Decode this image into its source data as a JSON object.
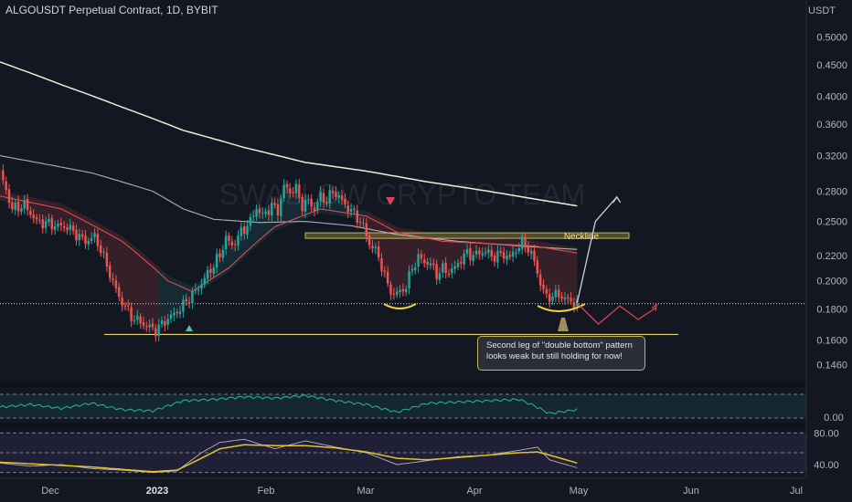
{
  "header": {
    "title": "ALGOUSDT Perpetual Contract, 1D, BYBIT",
    "currency": "USDT"
  },
  "watermark": "SWALLOW CRYPTO TEAM",
  "colors": {
    "background": "#131722",
    "up": "#26a69a",
    "down": "#ef5350",
    "accent": "#c5b55a"
  },
  "chart_data": {
    "type": "candlestick",
    "yscale": "log",
    "ylim": [
      0.137,
      0.54
    ],
    "y_ticks": [
      "0.5000",
      "0.4500",
      "0.4000",
      "0.3600",
      "0.3200",
      "0.2800",
      "0.2500",
      "0.2200",
      "0.2000",
      "0.1800",
      "0.1600",
      "0.1460"
    ],
    "x_ticks": [
      "Dec",
      "2023",
      "Feb",
      "Mar",
      "Apr",
      "May",
      "Jun",
      "Jul"
    ],
    "price_path": [
      [
        0,
        0.3
      ],
      [
        4,
        0.262
      ],
      [
        8,
        0.266
      ],
      [
        12,
        0.25
      ],
      [
        16,
        0.248
      ],
      [
        18,
        0.246
      ],
      [
        22,
        0.245
      ],
      [
        26,
        0.236
      ],
      [
        28,
        0.232
      ],
      [
        31,
        0.236
      ],
      [
        33,
        0.225
      ],
      [
        36,
        0.205
      ],
      [
        39,
        0.188
      ],
      [
        43,
        0.175
      ],
      [
        47,
        0.17
      ],
      [
        51,
        0.166
      ],
      [
        54,
        0.172
      ],
      [
        58,
        0.178
      ],
      [
        61,
        0.185
      ],
      [
        65,
        0.195
      ],
      [
        68,
        0.205
      ],
      [
        72,
        0.22
      ],
      [
        74,
        0.235
      ],
      [
        76,
        0.228
      ],
      [
        79,
        0.24
      ],
      [
        82,
        0.25
      ],
      [
        84,
        0.263
      ],
      [
        86,
        0.255
      ],
      [
        89,
        0.265
      ],
      [
        91,
        0.26
      ],
      [
        93,
        0.285
      ],
      [
        95,
        0.28
      ],
      [
        97,
        0.282
      ],
      [
        99,
        0.265
      ],
      [
        101,
        0.27
      ],
      [
        103,
        0.262
      ],
      [
        105,
        0.275
      ],
      [
        107,
        0.27
      ],
      [
        109,
        0.28
      ],
      [
        111,
        0.274
      ],
      [
        113,
        0.266
      ],
      [
        115,
        0.26
      ],
      [
        117,
        0.254
      ],
      [
        119,
        0.245
      ],
      [
        121,
        0.23
      ],
      [
        123,
        0.224
      ],
      [
        125,
        0.212
      ],
      [
        127,
        0.196
      ],
      [
        129,
        0.19
      ],
      [
        131,
        0.192
      ],
      [
        133,
        0.196
      ],
      [
        135,
        0.21
      ],
      [
        137,
        0.218
      ],
      [
        139,
        0.215
      ],
      [
        141,
        0.213
      ],
      [
        143,
        0.205
      ],
      [
        145,
        0.209
      ],
      [
        147,
        0.207
      ],
      [
        149,
        0.21
      ],
      [
        151,
        0.217
      ],
      [
        153,
        0.222
      ],
      [
        155,
        0.22
      ],
      [
        157,
        0.222
      ],
      [
        159,
        0.224
      ],
      [
        161,
        0.219
      ],
      [
        163,
        0.22
      ],
      [
        165,
        0.221
      ],
      [
        167,
        0.218
      ],
      [
        169,
        0.225
      ],
      [
        171,
        0.231
      ],
      [
        173,
        0.226
      ],
      [
        175,
        0.215
      ],
      [
        177,
        0.198
      ],
      [
        179,
        0.188
      ],
      [
        181,
        0.189
      ],
      [
        183,
        0.19
      ],
      [
        185,
        0.187
      ],
      [
        187,
        0.185
      ],
      [
        189,
        0.184
      ]
    ],
    "ema_short": [
      [
        0,
        0.275
      ],
      [
        20,
        0.262
      ],
      [
        40,
        0.232
      ],
      [
        55,
        0.2
      ],
      [
        63,
        0.192
      ],
      [
        75,
        0.21
      ],
      [
        90,
        0.245
      ],
      [
        105,
        0.262
      ],
      [
        120,
        0.255
      ],
      [
        130,
        0.24
      ],
      [
        145,
        0.232
      ],
      [
        160,
        0.23
      ],
      [
        175,
        0.228
      ],
      [
        189,
        0.222
      ]
    ],
    "ema_long": [
      [
        0,
        0.32
      ],
      [
        30,
        0.3
      ],
      [
        50,
        0.28
      ],
      [
        60,
        0.262
      ],
      [
        70,
        0.252
      ],
      [
        85,
        0.249
      ],
      [
        100,
        0.25
      ],
      [
        115,
        0.246
      ],
      [
        130,
        0.238
      ],
      [
        150,
        0.232
      ],
      [
        170,
        0.228
      ],
      [
        189,
        0.225
      ]
    ],
    "ma_200": [
      [
        0,
        0.455
      ],
      [
        20,
        0.418
      ],
      [
        40,
        0.384
      ],
      [
        60,
        0.352
      ],
      [
        80,
        0.33
      ],
      [
        100,
        0.312
      ],
      [
        120,
        0.302
      ],
      [
        140,
        0.29
      ],
      [
        160,
        0.28
      ],
      [
        175,
        0.272
      ],
      [
        189,
        0.265
      ]
    ],
    "levels": {
      "current_price": 0.1835,
      "support": 0.1635,
      "neckline_zone": [
        0.2346,
        0.2395
      ]
    },
    "annotations": {
      "neckline_label": "Neckline",
      "callout": "Second leg of \"double bottom\" pattern looks weak but still holding for now!"
    },
    "projection": {
      "up": [
        [
          189,
          0.184
        ],
        [
          195,
          0.25
        ],
        [
          202,
          0.274
        ]
      ],
      "down": [
        [
          189,
          0.184
        ],
        [
          196,
          0.17
        ],
        [
          203,
          0.182
        ],
        [
          209,
          0.173
        ],
        [
          215,
          0.181
        ]
      ]
    },
    "osc1": {
      "label": "0.00",
      "values": [
        [
          0,
          0.0
        ],
        [
          10,
          0.02
        ],
        [
          20,
          -0.01
        ],
        [
          30,
          0.03
        ],
        [
          40,
          -0.02
        ],
        [
          50,
          -0.03
        ],
        [
          60,
          0.05
        ],
        [
          70,
          0.06
        ],
        [
          80,
          0.08
        ],
        [
          90,
          0.07
        ],
        [
          100,
          0.09
        ],
        [
          110,
          0.05
        ],
        [
          120,
          0.02
        ],
        [
          130,
          -0.04
        ],
        [
          140,
          0.03
        ],
        [
          150,
          0.04
        ],
        [
          160,
          0.05
        ],
        [
          170,
          0.06
        ],
        [
          175,
          0.01
        ],
        [
          180,
          -0.05
        ],
        [
          189,
          -0.02
        ]
      ]
    },
    "osc2": {
      "labels": [
        "80.00",
        "40.00"
      ],
      "ylim": [
        25,
        85
      ],
      "fast": [
        [
          0,
          42
        ],
        [
          10,
          38
        ],
        [
          20,
          40
        ],
        [
          30,
          35
        ],
        [
          40,
          33
        ],
        [
          50,
          30
        ],
        [
          58,
          32
        ],
        [
          66,
          55
        ],
        [
          72,
          68
        ],
        [
          80,
          72
        ],
        [
          90,
          60
        ],
        [
          100,
          70
        ],
        [
          110,
          62
        ],
        [
          120,
          55
        ],
        [
          130,
          40
        ],
        [
          140,
          45
        ],
        [
          150,
          50
        ],
        [
          160,
          52
        ],
        [
          170,
          58
        ],
        [
          176,
          62
        ],
        [
          180,
          46
        ],
        [
          189,
          36
        ]
      ],
      "slow": [
        [
          0,
          43
        ],
        [
          10,
          41
        ],
        [
          20,
          39
        ],
        [
          30,
          37
        ],
        [
          40,
          34
        ],
        [
          50,
          31
        ],
        [
          58,
          33
        ],
        [
          66,
          48
        ],
        [
          72,
          60
        ],
        [
          80,
          65
        ],
        [
          90,
          64
        ],
        [
          100,
          64
        ],
        [
          110,
          61
        ],
        [
          120,
          56
        ],
        [
          130,
          48
        ],
        [
          140,
          46
        ],
        [
          150,
          49
        ],
        [
          160,
          52
        ],
        [
          170,
          55
        ],
        [
          176,
          56
        ],
        [
          180,
          52
        ],
        [
          189,
          42
        ]
      ]
    }
  }
}
